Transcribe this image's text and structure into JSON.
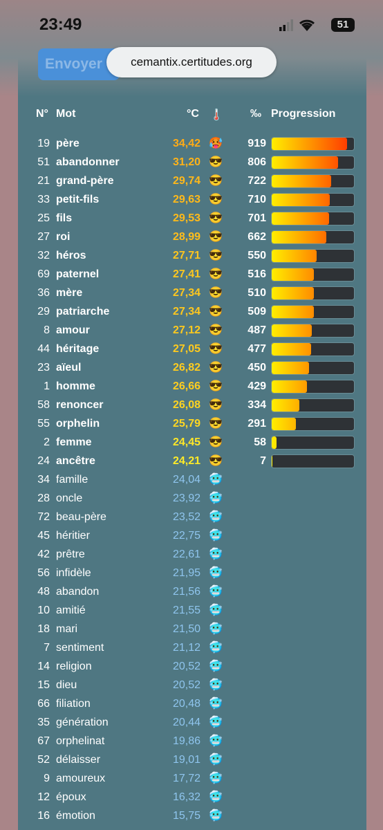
{
  "status_bar": {
    "time": "23:49",
    "battery": "51"
  },
  "browser": {
    "url": "cemantix.certitudes.org",
    "button": "Envoyer"
  },
  "table": {
    "headers": {
      "number": "N°",
      "word": "Mot",
      "temperature": "°C",
      "thermometer": "🌡️",
      "permille": "‰",
      "progression": "Progression"
    },
    "rows": [
      {
        "n": 19,
        "word": "père",
        "temp": "34,42",
        "emoji": "🥵",
        "progression": 919
      },
      {
        "n": 51,
        "word": "abandonner",
        "temp": "31,20",
        "emoji": "😎",
        "progression": 806
      },
      {
        "n": 21,
        "word": "grand-père",
        "temp": "29,74",
        "emoji": "😎",
        "progression": 722
      },
      {
        "n": 33,
        "word": "petit-fils",
        "temp": "29,63",
        "emoji": "😎",
        "progression": 710
      },
      {
        "n": 25,
        "word": "fils",
        "temp": "29,53",
        "emoji": "😎",
        "progression": 701
      },
      {
        "n": 27,
        "word": "roi",
        "temp": "28,99",
        "emoji": "😎",
        "progression": 662
      },
      {
        "n": 32,
        "word": "héros",
        "temp": "27,71",
        "emoji": "😎",
        "progression": 550
      },
      {
        "n": 69,
        "word": "paternel",
        "temp": "27,41",
        "emoji": "😎",
        "progression": 516
      },
      {
        "n": 36,
        "word": "mère",
        "temp": "27,34",
        "emoji": "😎",
        "progression": 510
      },
      {
        "n": 29,
        "word": "patriarche",
        "temp": "27,34",
        "emoji": "😎",
        "progression": 509
      },
      {
        "n": 8,
        "word": "amour",
        "temp": "27,12",
        "emoji": "😎",
        "progression": 487
      },
      {
        "n": 44,
        "word": "héritage",
        "temp": "27,05",
        "emoji": "😎",
        "progression": 477
      },
      {
        "n": 23,
        "word": "aïeul",
        "temp": "26,82",
        "emoji": "😎",
        "progression": 450
      },
      {
        "n": 1,
        "word": "homme",
        "temp": "26,66",
        "emoji": "😎",
        "progression": 429
      },
      {
        "n": 58,
        "word": "renoncer",
        "temp": "26,08",
        "emoji": "😎",
        "progression": 334
      },
      {
        "n": 55,
        "word": "orphelin",
        "temp": "25,79",
        "emoji": "😎",
        "progression": 291
      },
      {
        "n": 2,
        "word": "femme",
        "temp": "24,45",
        "emoji": "😎",
        "progression": 58
      },
      {
        "n": 24,
        "word": "ancêtre",
        "temp": "24,21",
        "emoji": "😎",
        "progression": 7
      },
      {
        "n": 34,
        "word": "famille",
        "temp": "24,04",
        "emoji": "🥶"
      },
      {
        "n": 28,
        "word": "oncle",
        "temp": "23,92",
        "emoji": "🥶"
      },
      {
        "n": 72,
        "word": "beau-père",
        "temp": "23,52",
        "emoji": "🥶"
      },
      {
        "n": 45,
        "word": "héritier",
        "temp": "22,75",
        "emoji": "🥶"
      },
      {
        "n": 42,
        "word": "prêtre",
        "temp": "22,61",
        "emoji": "🥶"
      },
      {
        "n": 56,
        "word": "infidèle",
        "temp": "21,95",
        "emoji": "🥶"
      },
      {
        "n": 48,
        "word": "abandon",
        "temp": "21,56",
        "emoji": "🥶"
      },
      {
        "n": 10,
        "word": "amitié",
        "temp": "21,55",
        "emoji": "🥶"
      },
      {
        "n": 18,
        "word": "mari",
        "temp": "21,50",
        "emoji": "🥶"
      },
      {
        "n": 7,
        "word": "sentiment",
        "temp": "21,12",
        "emoji": "🥶"
      },
      {
        "n": 14,
        "word": "religion",
        "temp": "20,52",
        "emoji": "🥶"
      },
      {
        "n": 15,
        "word": "dieu",
        "temp": "20,52",
        "emoji": "🥶"
      },
      {
        "n": 66,
        "word": "filiation",
        "temp": "20,48",
        "emoji": "🥶"
      },
      {
        "n": 35,
        "word": "génération",
        "temp": "20,44",
        "emoji": "🥶"
      },
      {
        "n": 67,
        "word": "orphelinat",
        "temp": "19,86",
        "emoji": "🥶"
      },
      {
        "n": 52,
        "word": "délaisser",
        "temp": "19,01",
        "emoji": "🥶"
      },
      {
        "n": 9,
        "word": "amoureux",
        "temp": "17,72",
        "emoji": "🥶"
      },
      {
        "n": 12,
        "word": "époux",
        "temp": "16,32",
        "emoji": "🥶"
      },
      {
        "n": 16,
        "word": "émotion",
        "temp": "15,75",
        "emoji": "🥶"
      }
    ]
  }
}
